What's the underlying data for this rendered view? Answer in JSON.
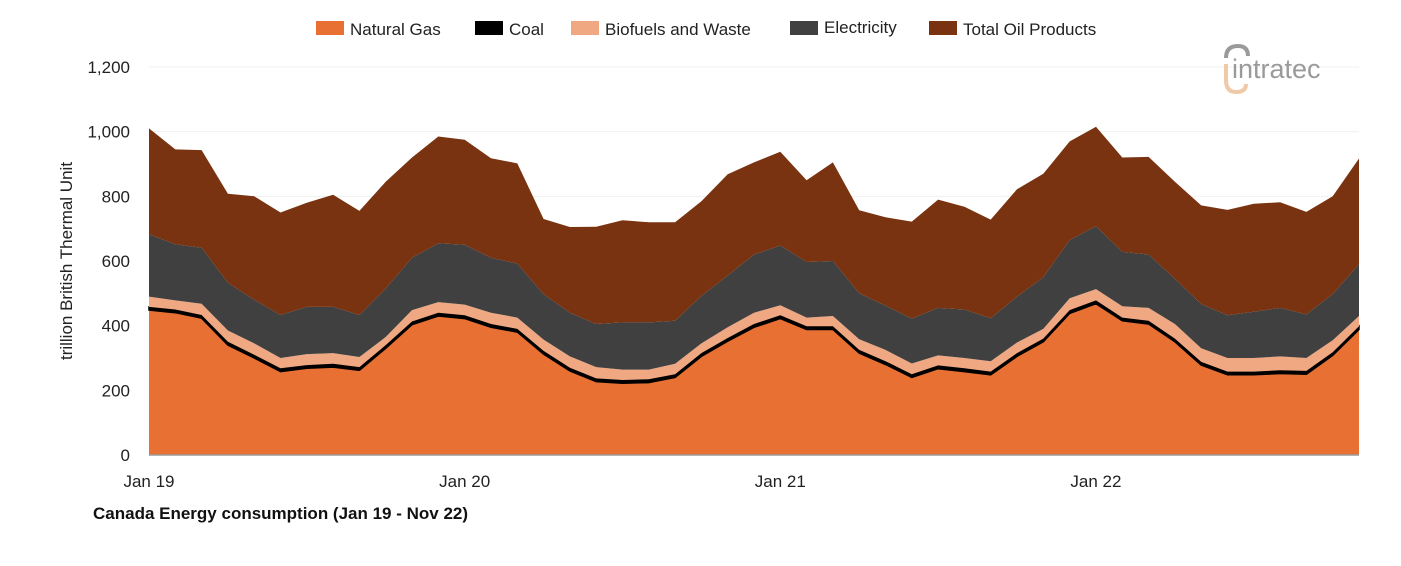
{
  "logo_text": "intratec",
  "chart_data": {
    "type": "area",
    "stacked": true,
    "title": "Canada Energy consumption (Jan 19 - Nov 22)",
    "xlabel": "",
    "ylabel": "trillion British Thermal Unit",
    "ylim": [
      0,
      1200
    ],
    "yticks": [
      "0",
      "200",
      "400",
      "600",
      "800",
      "1,000",
      "1,200"
    ],
    "ytick_values": [
      0,
      200,
      400,
      600,
      800,
      1000,
      1200
    ],
    "xticks": [
      {
        "label": "Jan 19",
        "x": "2019-01"
      },
      {
        "label": "Jan 20",
        "x": "2020-01"
      },
      {
        "label": "Jan 21",
        "x": "2021-01"
      },
      {
        "label": "Jan 22",
        "x": "2022-01"
      }
    ],
    "grid": true,
    "legend_position": "top",
    "x": [
      "2019-01",
      "2019-02",
      "2019-03",
      "2019-04",
      "2019-05",
      "2019-06",
      "2019-07",
      "2019-08",
      "2019-09",
      "2019-10",
      "2019-11",
      "2019-12",
      "2020-01",
      "2020-02",
      "2020-03",
      "2020-04",
      "2020-05",
      "2020-06",
      "2020-07",
      "2020-08",
      "2020-09",
      "2020-10",
      "2020-11",
      "2020-12",
      "2021-01",
      "2021-02",
      "2021-03",
      "2021-04",
      "2021-05",
      "2021-06",
      "2021-07",
      "2021-08",
      "2021-09",
      "2021-10",
      "2021-11",
      "2021-12",
      "2022-01",
      "2022-02",
      "2022-03",
      "2022-04",
      "2022-05",
      "2022-06",
      "2022-07",
      "2022-08",
      "2022-09",
      "2022-10",
      "2022-11"
    ],
    "series": [
      {
        "name": "Natural Gas",
        "color": "#E87033",
        "values": [
          448,
          440,
          423,
          340,
          300,
          258,
          268,
          272,
          262,
          330,
          403,
          430,
          422,
          395,
          380,
          312,
          260,
          227,
          222,
          224,
          240,
          305,
          352,
          395,
          422,
          388,
          388,
          315,
          280,
          240,
          267,
          258,
          248,
          305,
          350,
          438,
          468,
          415,
          405,
          350,
          278,
          248,
          248,
          252,
          250,
          308,
          388
        ]
      },
      {
        "name": "Coal",
        "color": "#000000",
        "values": [
          10,
          10,
          10,
          10,
          10,
          10,
          10,
          10,
          10,
          10,
          10,
          10,
          10,
          10,
          10,
          10,
          10,
          10,
          10,
          10,
          10,
          10,
          10,
          10,
          10,
          10,
          10,
          10,
          10,
          10,
          10,
          10,
          10,
          10,
          10,
          10,
          10,
          10,
          10,
          10,
          10,
          10,
          10,
          10,
          10,
          10,
          10
        ]
      },
      {
        "name": "Biofuels and Waste",
        "color": "#F0A882",
        "values": [
          32,
          28,
          35,
          35,
          35,
          32,
          34,
          33,
          31,
          25,
          35,
          33,
          33,
          35,
          35,
          35,
          35,
          35,
          32,
          30,
          32,
          30,
          33,
          35,
          31,
          27,
          32,
          33,
          35,
          33,
          31,
          32,
          32,
          33,
          30,
          37,
          35,
          35,
          40,
          45,
          42,
          42,
          42,
          43,
          40,
          37,
          32
        ]
      },
      {
        "name": "Electricity",
        "color": "#404040",
        "values": [
          193,
          174,
          173,
          148,
          135,
          133,
          146,
          143,
          130,
          150,
          162,
          182,
          185,
          170,
          167,
          140,
          135,
          133,
          146,
          146,
          133,
          147,
          160,
          180,
          185,
          172,
          170,
          142,
          137,
          139,
          147,
          150,
          133,
          142,
          160,
          180,
          195,
          168,
          165,
          140,
          137,
          132,
          143,
          150,
          135,
          143,
          160
        ]
      },
      {
        "name": "Total Oil Products",
        "color": "#7A3310",
        "values": [
          327,
          293,
          302,
          275,
          320,
          317,
          322,
          347,
          322,
          330,
          310,
          330,
          325,
          308,
          310,
          233,
          265,
          301,
          316,
          310,
          305,
          293,
          313,
          285,
          290,
          253,
          305,
          257,
          273,
          300,
          335,
          318,
          305,
          332,
          320,
          305,
          307,
          292,
          302,
          300,
          305,
          326,
          334,
          327,
          317,
          302,
          327
        ]
      }
    ]
  }
}
